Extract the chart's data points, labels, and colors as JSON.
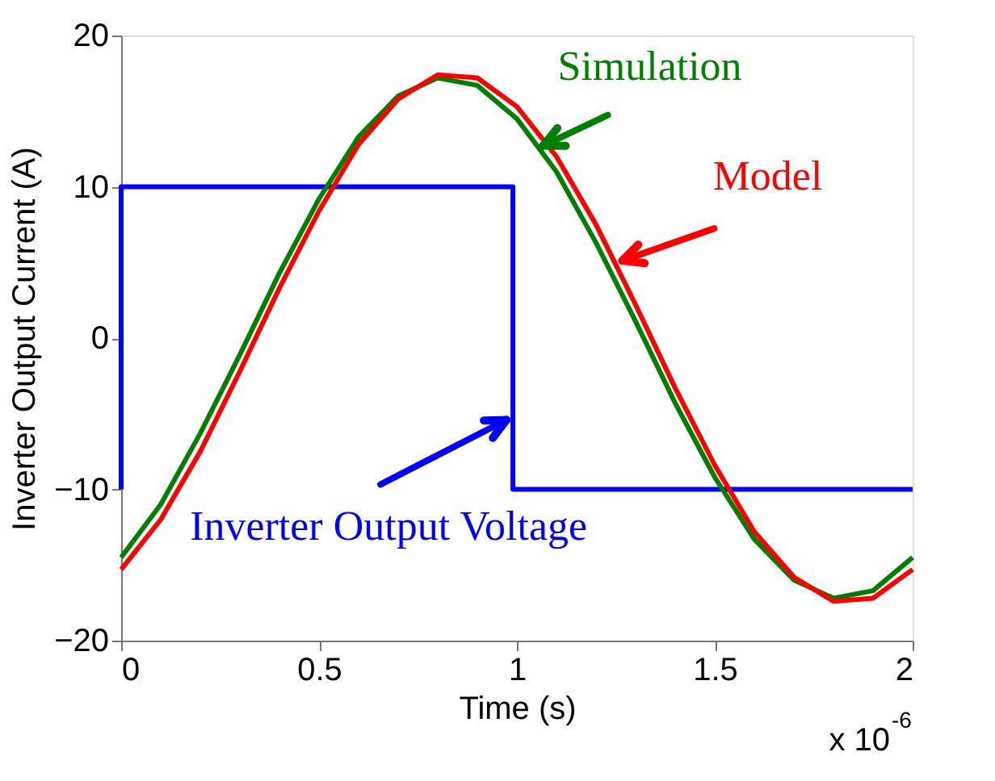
{
  "chart_data": {
    "type": "line",
    "xlabel": "Time (s)",
    "ylabel": "Inverter Output Current (A)",
    "xlim": [
      0,
      2
    ],
    "xticks": [
      0,
      0.5,
      1,
      1.5,
      2
    ],
    "ylim": [
      -20,
      20
    ],
    "yticks": [
      -20,
      -10,
      0,
      10,
      20
    ],
    "grid": false,
    "marker": "none",
    "line_style": "solid",
    "series": [
      {
        "color": "#0000ff",
        "x": [
          0,
          0,
          0.99,
          0.99,
          2
        ],
        "values": [
          -10,
          10,
          10,
          -10,
          -10
        ]
      },
      {
        "color": "#007f00",
        "x": [
          0,
          0.1,
          0.2,
          0.3,
          0.4,
          0.5,
          0.6,
          0.7,
          0.8,
          0.9,
          1.0,
          1.1,
          1.2,
          1.3,
          1.4,
          1.5,
          1.6,
          1.7,
          1.8,
          1.9,
          2.0
        ],
        "values": [
          -14.5,
          -11.0,
          -6.3,
          -1.1,
          4.3,
          9.2,
          13.3,
          16.0,
          17.2,
          16.7,
          14.5,
          11.0,
          6.3,
          1.1,
          -4.3,
          -9.2,
          -13.3,
          -16.0,
          -17.2,
          -16.7,
          -14.5
        ]
      },
      {
        "color": "#ff0000",
        "x": [
          0,
          0.1,
          0.2,
          0.3,
          0.4,
          0.5,
          0.6,
          0.7,
          0.8,
          0.9,
          1.0,
          1.1,
          1.2,
          1.3,
          1.4,
          1.5,
          1.6,
          1.7,
          1.8,
          1.9,
          2.0
        ],
        "values": [
          -15.3,
          -12.0,
          -7.5,
          -2.2,
          3.3,
          8.4,
          12.8,
          15.8,
          17.4,
          17.2,
          15.3,
          12.0,
          7.5,
          2.2,
          -3.3,
          -8.4,
          -12.8,
          -15.8,
          -17.4,
          -17.2,
          -15.3
        ]
      }
    ],
    "annotations": [
      {
        "text": "Inverter Output Voltage",
        "x": 0.99,
        "y": -5.2
      },
      {
        "text": "Simulation",
        "x": 1.05,
        "y": 12.5
      },
      {
        "text": "Model",
        "x": 1.25,
        "y": 4.9
      },
      "x 10$^{-6}$"
    ]
  }
}
